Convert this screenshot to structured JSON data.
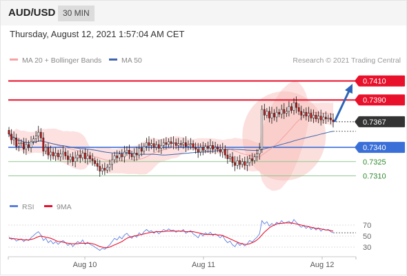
{
  "header": {
    "symbol": "AUD/USD",
    "timeframe": "30 MIN"
  },
  "timestamp": "Thursday, August 12, 2021 1:57:04 AM CET",
  "legend": {
    "ma20_label": "MA 20 + Bollinger Bands",
    "ma50_label": "MA 50",
    "credit": "Research © 2021 Trading Central",
    "ma20_color": "#f4a3a3",
    "ma50_color": "#3f63ad",
    "rsi_label": "RSI",
    "rsi_color": "#5b7fde",
    "ma9_label": "9MA",
    "ma9_color": "#e8102a"
  },
  "colors": {
    "resistance": "#e8102a",
    "support": "#3a6fd8",
    "minor_support": "#8fc98f",
    "arrow": "#2d64b8",
    "candle_up": "#ffffff",
    "candle_down": "#cc1111",
    "current": "#333333",
    "bollinger_fill": "#fbd7d5"
  },
  "chart_data": {
    "type": "candlestick",
    "x_ticks": [
      "Aug 10",
      "Aug 11",
      "Aug 12"
    ],
    "y_range": [
      0.729,
      0.7425
    ],
    "levels": [
      {
        "label": "0.7410",
        "value": 0.741,
        "kind": "resistance"
      },
      {
        "label": "0.7390",
        "value": 0.739,
        "kind": "resistance"
      },
      {
        "label": "0.7367",
        "value": 0.7367,
        "kind": "current"
      },
      {
        "label": "0.7340",
        "value": 0.734,
        "kind": "support"
      },
      {
        "label": "0.7325",
        "value": 0.7325,
        "kind": "minor"
      },
      {
        "label": "0.7310",
        "value": 0.731,
        "kind": "minor"
      }
    ],
    "close": [
      0.7354,
      0.7348,
      0.735,
      0.7341,
      0.7344,
      0.7345,
      0.7338,
      0.7343,
      0.734,
      0.7346,
      0.7349,
      0.7352,
      0.7356,
      0.735,
      0.7336,
      0.734,
      0.7332,
      0.7335,
      0.7331,
      0.7334,
      0.733,
      0.7333,
      0.7335,
      0.7331,
      0.7327,
      0.733,
      0.7325,
      0.7329,
      0.7332,
      0.7329,
      0.7334,
      0.7328,
      0.7331,
      0.7328,
      0.7326,
      0.7323,
      0.732,
      0.7315,
      0.7318,
      0.7316,
      0.7319,
      0.7322,
      0.7327,
      0.7331,
      0.7329,
      0.7333,
      0.733,
      0.7335,
      0.7337,
      0.7333,
      0.733,
      0.7334,
      0.7332,
      0.7339,
      0.7336,
      0.7341,
      0.7345,
      0.7342,
      0.7344,
      0.734,
      0.7343,
      0.7339,
      0.7342,
      0.7345,
      0.7343,
      0.7346,
      0.7344,
      0.7345,
      0.7342,
      0.7344,
      0.7343,
      0.7345,
      0.7341,
      0.7343,
      0.7344,
      0.734,
      0.7338,
      0.7335,
      0.734,
      0.7337,
      0.7341,
      0.7339,
      0.7342,
      0.7338,
      0.734,
      0.7338,
      0.7335,
      0.7338,
      0.7332,
      0.7328,
      0.733,
      0.7324,
      0.7321,
      0.7326,
      0.7322,
      0.7325,
      0.7321,
      0.7324,
      0.7328,
      0.7326,
      0.733,
      0.7333,
      0.7338,
      0.738,
      0.7374,
      0.7378,
      0.7371,
      0.7376,
      0.7372,
      0.7377,
      0.7375,
      0.738,
      0.7376,
      0.7378,
      0.7383,
      0.7379,
      0.7387,
      0.7382,
      0.7378,
      0.7374,
      0.7377,
      0.7373,
      0.7376,
      0.7371,
      0.7374,
      0.737,
      0.7373,
      0.7369,
      0.7372,
      0.737,
      0.7371,
      0.7369,
      0.7367
    ],
    "resistance_arrow_target": 0.7407,
    "rsi_axis": [
      30,
      50,
      70
    ],
    "rsi": [
      48,
      44,
      46,
      41,
      43,
      45,
      40,
      44,
      42,
      47,
      51,
      55,
      58,
      52,
      42,
      46,
      38,
      42,
      36,
      40,
      35,
      39,
      42,
      38,
      33,
      37,
      31,
      36,
      40,
      37,
      43,
      35,
      39,
      35,
      33,
      30,
      27,
      24,
      28,
      26,
      30,
      34,
      40,
      46,
      43,
      49,
      45,
      52,
      55,
      50,
      46,
      51,
      48,
      56,
      52,
      58,
      62,
      58,
      60,
      55,
      59,
      54,
      58,
      62,
      59,
      63,
      60,
      61,
      57,
      60,
      58,
      62,
      55,
      58,
      60,
      54,
      51,
      47,
      55,
      50,
      56,
      53,
      57,
      51,
      54,
      51,
      47,
      51,
      43,
      38,
      41,
      34,
      31,
      38,
      33,
      37,
      32,
      36,
      42,
      39,
      44,
      48,
      54,
      78,
      72,
      76,
      68,
      73,
      69,
      75,
      72,
      78,
      73,
      75,
      77,
      72,
      80,
      75,
      70,
      66,
      69,
      64,
      68,
      62,
      66,
      61,
      65,
      59,
      63,
      61,
      62,
      58,
      56
    ],
    "rsi_ma9": [
      46,
      46,
      45,
      45,
      44,
      44,
      43,
      43,
      43,
      44,
      45,
      47,
      49,
      50,
      49,
      48,
      47,
      46,
      44,
      42,
      40,
      40,
      39,
      38,
      37,
      36,
      36,
      36,
      36,
      37,
      37,
      37,
      37,
      37,
      36,
      35,
      33,
      31,
      30,
      29,
      29,
      30,
      32,
      34,
      36,
      38,
      40,
      43,
      46,
      48,
      49,
      50,
      51,
      52,
      53,
      54,
      55,
      56,
      57,
      57,
      58,
      58,
      58,
      58,
      59,
      59,
      59,
      59,
      59,
      59,
      59,
      59,
      58,
      58,
      58,
      58,
      57,
      56,
      55,
      54,
      53,
      53,
      53,
      53,
      53,
      52,
      52,
      51,
      49,
      47,
      45,
      43,
      41,
      39,
      37,
      36,
      35,
      35,
      36,
      38,
      40,
      43,
      47,
      52,
      57,
      61,
      65,
      68,
      70,
      72,
      73,
      73,
      74,
      74,
      74,
      74,
      73,
      72,
      71,
      70,
      69,
      68,
      67,
      66,
      65,
      64,
      64,
      63,
      62,
      61,
      61,
      60,
      59
    ],
    "rsi_ylim": [
      20,
      85
    ]
  }
}
